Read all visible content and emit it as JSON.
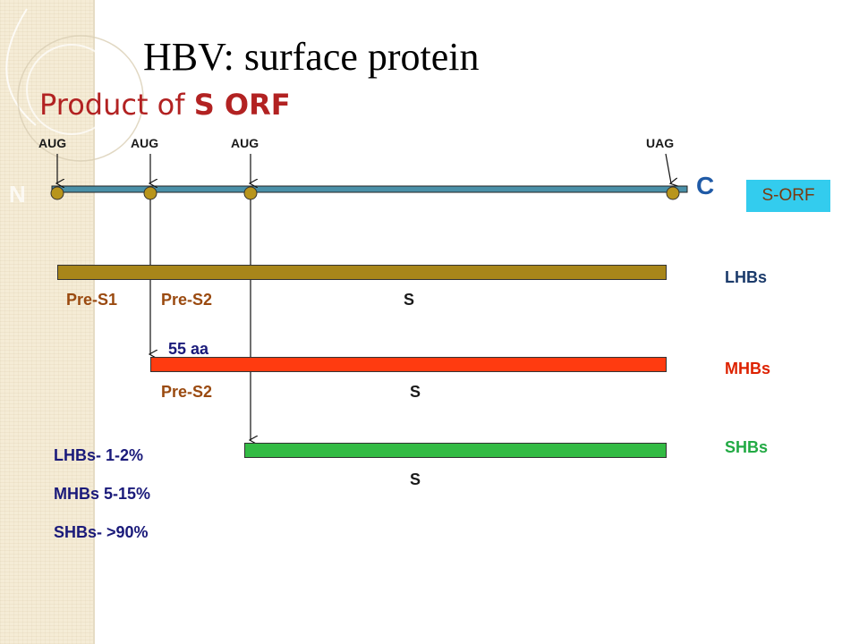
{
  "title": "HBV: surface protein",
  "subtitle": {
    "prefix": "Product of ",
    "bold": "S ORF"
  },
  "codons": [
    "AUG",
    "AUG",
    "AUG",
    "UAG"
  ],
  "orf": {
    "n_label": "N",
    "c_label": "C",
    "box_label": "S-ORF"
  },
  "regions": {
    "lhbs": [
      "Pre-S1",
      "Pre-S2",
      "S"
    ],
    "mhbs": [
      "Pre-S2",
      "S"
    ],
    "shbs": [
      "S"
    ]
  },
  "pre_s1_length": "55 aa",
  "proteins": {
    "lhbs": "LHBs",
    "mhbs": "MHBs",
    "shbs": "SHBs"
  },
  "stats": [
    "LHBs- 1-2%",
    "MHBs 5-15%",
    "SHBs- >90%"
  ],
  "colors": {
    "orf_line": "#4a90a8",
    "lhbs_bar": "#a8861a",
    "mhbs_bar": "#ff3b10",
    "shbs_bar": "#33bb44",
    "region_text": "#9a4a10",
    "lhbs_label": "#1a3a6a",
    "mhbs_label": "#dd2200",
    "shbs_label": "#22aa44"
  }
}
